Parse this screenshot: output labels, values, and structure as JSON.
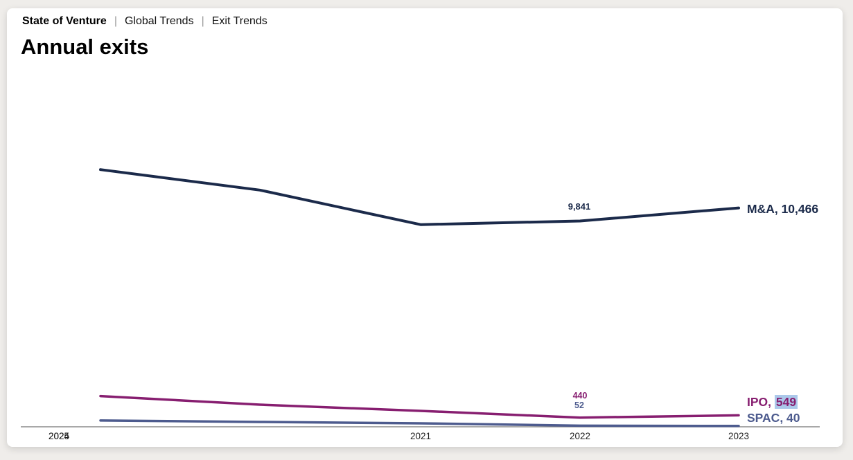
{
  "header": {
    "brand": "State of Venture",
    "separator": "|",
    "nav_items": [
      "Global Trends",
      "Exit Trends"
    ]
  },
  "page_title": "Annual exits",
  "chart_data": {
    "type": "line",
    "title": "Annual exits",
    "categories": [
      "2021",
      "2022",
      "2023",
      "2024",
      "2025"
    ],
    "series": [
      {
        "name": "M&A",
        "color": "#1b2a4a",
        "values": [
          12300,
          11320,
          9670,
          9841,
          10466
        ],
        "end_label": "M&A, 10,466"
      },
      {
        "name": "IPO",
        "color": "#871e70",
        "values": [
          1470,
          1060,
          760,
          440,
          549
        ],
        "end_label": "IPO, 549"
      },
      {
        "name": "SPAC",
        "color": "#4d5b8e",
        "values": [
          300,
          230,
          165,
          52,
          40
        ],
        "end_label": "SPAC, 40"
      }
    ],
    "data_labels": {
      "ma_2024": "9,841",
      "ipo_2024": "440",
      "spac_2024": "52"
    },
    "end_labels": {
      "ma": "M&A, 10,466",
      "ipo_prefix": "IPO, ",
      "ipo_value": "549",
      "spac": "SPAC, 40"
    },
    "ipo_value_highlight_color": "#abc8ea",
    "axis_color": "#8c8c8c",
    "xlabel": "",
    "ylabel": "",
    "ylim": [
      0,
      13000
    ],
    "grid": false,
    "legend_position": "end-of-line labels",
    "note": "2021-2023 values estimated from line positions; labeled values: M&A 2024=9,841, 2025=10,466; IPO 2024=440, 2025=549; SPAC 2024=52, 2025=40"
  }
}
